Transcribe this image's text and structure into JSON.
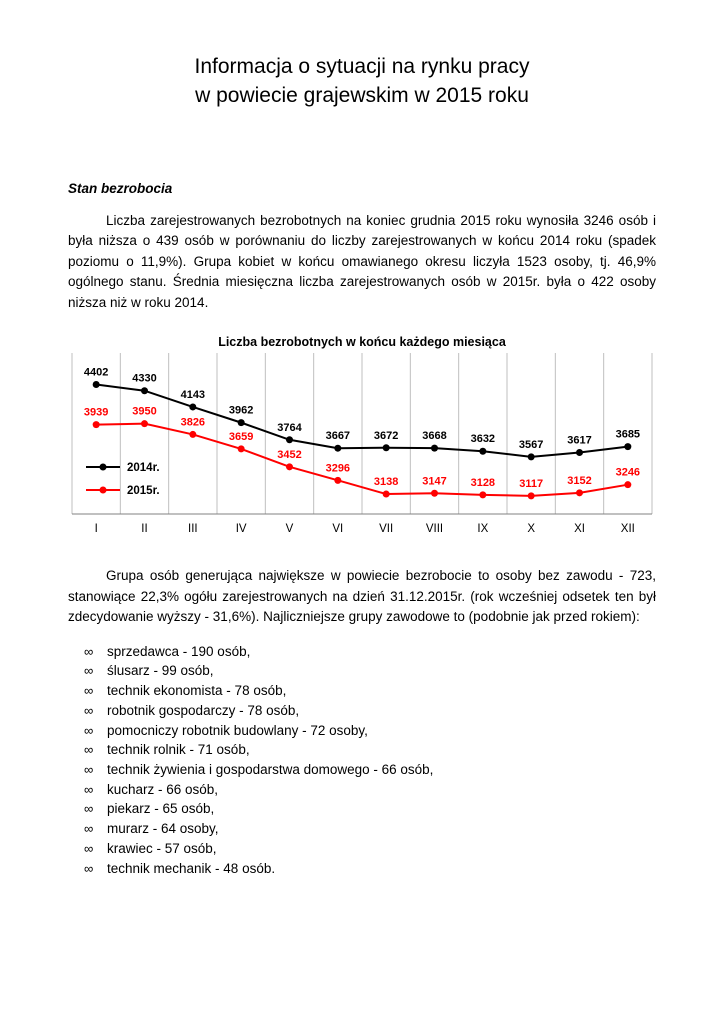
{
  "page": {
    "title_line1": "Informacja o sytuacji na rynku pracy",
    "title_line2": "w powiecie grajewskim w 2015 roku",
    "section_heading": "Stan bezrobocia",
    "paragraph1": "Liczba zarejestrowanych bezrobotnych na koniec grudnia 2015 roku wynosiła 3246 osób i była niższa o 439 osób w porównaniu do liczby zarejestrowanych w końcu 2014 roku (spadek poziomu o 11,9%). Grupa kobiet w końcu omawianego okresu liczyła 1523 osoby, tj. 46,9% ogólnego stanu. Średnia miesięczna liczba zarejestrowanych osób w 2015r. była o 422 osoby niższa niż w roku 2014.",
    "paragraph2": "Grupa osób generująca największe w powiecie bezrobocie to osoby bez zawodu - 723, stanowiące 22,3% ogółu zarejestrowanych na dzień 31.12.2015r. (rok wcześniej odsetek ten był zdecydowanie wyższy - 31,6%). Najliczniejsze grupy zawodowe to (podobnie jak przed rokiem):",
    "bullet_char": "∞",
    "list_items": [
      "sprzedawca - 190 osób,",
      "ślusarz - 99 osób,",
      "technik ekonomista - 78 osób,",
      "robotnik gospodarczy - 78 osób,",
      "pomocniczy robotnik budowlany - 72 osoby,",
      "technik rolnik - 71 osób,",
      "technik żywienia i gospodarstwa domowego - 66 osób,",
      "kucharz - 66 osób,",
      "piekarz - 65 osób,",
      "murarz - 64 osoby,",
      "krawiec - 57 osób,",
      "technik mechanik - 48 osób."
    ]
  },
  "chart_data": {
    "type": "line",
    "title": "Liczba bezrobotnych w końcu każdego miesiąca",
    "categories": [
      "I",
      "II",
      "III",
      "IV",
      "V",
      "VI",
      "VII",
      "VIII",
      "IX",
      "X",
      "XI",
      "XII"
    ],
    "series": [
      {
        "name": "2014r.",
        "color": "#000000",
        "values": [
          4402,
          4330,
          4143,
          3962,
          3764,
          3667,
          3672,
          3668,
          3632,
          3567,
          3617,
          3685
        ]
      },
      {
        "name": "2015r.",
        "color": "#ff0000",
        "values": [
          3939,
          3950,
          3826,
          3659,
          3452,
          3296,
          3138,
          3147,
          3128,
          3117,
          3152,
          3246
        ]
      }
    ],
    "ylim": [
      3000,
      4500
    ],
    "grid": "vertical",
    "legend_position": "left-inside",
    "grid_color": "#bfbfbf",
    "axis_color": "#808080"
  }
}
